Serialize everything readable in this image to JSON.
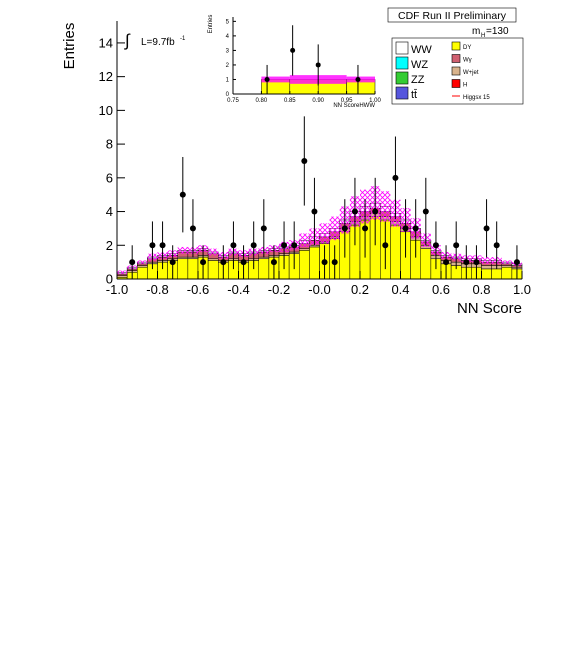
{
  "chart_data": {
    "type": "stacked-histogram",
    "title": "CDF Run II Preliminary",
    "x_label": "NN Score",
    "y_label": "Entries",
    "annotations": {
      "lumi_integral": "∫",
      "lumi": "L=9.7fb",
      "lumi_exp": "-1",
      "mass": "m",
      "mass_sub": "H",
      "mass_val": "=130"
    },
    "bins_start": -1.0,
    "bin_width": 0.05,
    "xlim": [
      -1.0,
      1.0
    ],
    "ylim": [
      0,
      15.3
    ],
    "xticks": [
      {
        "value": -1.0,
        "label": "-1.0"
      },
      {
        "value": -0.8,
        "label": "-0.8"
      },
      {
        "value": -0.6,
        "label": "-0.6"
      },
      {
        "value": -0.4,
        "label": "-0.4"
      },
      {
        "value": -0.2,
        "label": "-0.2"
      },
      {
        "value": 0,
        "label": "-0.0"
      },
      {
        "value": 0.2,
        "label": "0.2"
      },
      {
        "value": 0.4,
        "label": "0.4"
      },
      {
        "value": 0.6,
        "label": "0.6"
      },
      {
        "value": 0.8,
        "label": "0.8"
      },
      {
        "value": 1.0,
        "label": "1.0"
      }
    ],
    "yticks": [
      0,
      2,
      4,
      6,
      8,
      10,
      12,
      14
    ],
    "series": [
      {
        "name": "DY",
        "color": "#ffff00",
        "values": [
          0.1,
          0.4,
          0.7,
          0.9,
          1.0,
          1.1,
          1.2,
          1.2,
          1.3,
          1.1,
          1.0,
          1.1,
          1.0,
          1.1,
          1.2,
          1.3,
          1.4,
          1.5,
          1.7,
          1.9,
          2.1,
          2.4,
          2.8,
          3.2,
          3.5,
          3.7,
          3.5,
          3.2,
          2.8,
          2.3,
          1.8,
          1.2,
          0.9,
          0.8,
          0.7,
          0.7,
          0.6,
          0.6,
          0.7,
          0.6
        ]
      },
      {
        "name": "W+jet",
        "color": "#d9b38c",
        "values": [
          0.1,
          0.1,
          0.1,
          0.1,
          0.1,
          0.1,
          0.1,
          0.1,
          0.1,
          0.1,
          0.1,
          0.1,
          0.1,
          0.1,
          0.1,
          0.1,
          0.1,
          0.1,
          0.1,
          0.1,
          0.1,
          0.1,
          0.2,
          0.2,
          0.2,
          0.2,
          0.2,
          0.2,
          0.2,
          0.2,
          0.2,
          0.2,
          0.2,
          0.2,
          0.2,
          0.2,
          0.2,
          0.2,
          0.1,
          0.1
        ]
      },
      {
        "name": "Wγ",
        "color": "#d06070",
        "values": [
          0.1,
          0.1,
          0.1,
          0.2,
          0.2,
          0.2,
          0.3,
          0.3,
          0.3,
          0.3,
          0.2,
          0.3,
          0.3,
          0.3,
          0.3,
          0.3,
          0.3,
          0.3,
          0.3,
          0.3,
          0.3,
          0.3,
          0.3,
          0.3,
          0.3,
          0.3,
          0.3,
          0.3,
          0.3,
          0.3,
          0.2,
          0.2,
          0.2,
          0.2,
          0.2,
          0.2,
          0.2,
          0.2,
          0.1,
          0.1
        ]
      },
      {
        "name": "WW",
        "color": "#ffffff",
        "values": [
          0.1,
          0.1,
          0.1,
          0.1,
          0.1,
          0.1,
          0.1,
          0.1,
          0.1,
          0.1,
          0.1,
          0.1,
          0.1,
          0.1,
          0.1,
          0.1,
          0.1,
          0.1,
          0.2,
          0.2,
          0.2,
          0.2,
          0.2,
          0.3,
          0.3,
          0.3,
          0.3,
          0.2,
          0.2,
          0.2,
          0.1,
          0.1,
          0.1,
          0.1,
          0.1,
          0.1,
          0.1,
          0.1,
          0.1,
          0.1
        ]
      }
    ],
    "error_band": [
      0.1,
      0.1,
      0.1,
      0.2,
      0.2,
      0.2,
      0.2,
      0.2,
      0.2,
      0.2,
      0.2,
      0.2,
      0.2,
      0.2,
      0.2,
      0.2,
      0.3,
      0.3,
      0.4,
      0.5,
      0.6,
      0.7,
      0.8,
      0.9,
      1.0,
      1.0,
      0.9,
      0.8,
      0.7,
      0.6,
      0.4,
      0.3,
      0.2,
      0.2,
      0.2,
      0.2,
      0.2,
      0.2,
      0.1,
      0.1
    ],
    "data_x": [
      -0.925,
      -0.825,
      -0.775,
      -0.725,
      -0.675,
      -0.625,
      -0.575,
      -0.475,
      -0.425,
      -0.375,
      -0.325,
      -0.275,
      -0.225,
      -0.175,
      -0.125,
      -0.075,
      -0.025,
      0.025,
      0.075,
      0.125,
      0.175,
      0.225,
      0.275,
      0.325,
      0.375,
      0.425,
      0.475,
      0.525,
      0.575,
      0.625,
      0.675,
      0.725,
      0.775,
      0.825,
      0.875,
      0.975
    ],
    "data_y": [
      1,
      2,
      2,
      1,
      5,
      3,
      1,
      1,
      2,
      1,
      2,
      3,
      1,
      2,
      2,
      7,
      4,
      1,
      1,
      3,
      4,
      3,
      4,
      2,
      6,
      3,
      3,
      4,
      2,
      1,
      2,
      1,
      1,
      3,
      2,
      1
    ],
    "legend": [
      {
        "name": "WW",
        "color": "#ffffff"
      },
      {
        "name": "WZ",
        "color": "#00ffff"
      },
      {
        "name": "ZZ",
        "color": "#33cc33"
      },
      {
        "name": "tt̄",
        "color": "#5555dd"
      },
      {
        "name": "DY",
        "color": "#ffff00"
      },
      {
        "name": "Wγ",
        "color": "#d06070"
      },
      {
        "name": "W+jet",
        "color": "#d9b38c"
      },
      {
        "name": "H",
        "color": "#ff0000"
      },
      {
        "name": "Higgsx 15",
        "color": "#ff0000",
        "line": true
      }
    ],
    "inset": {
      "x_label": "NN ScoreHWW",
      "y_label": "Entries",
      "xlim": [
        0.75,
        1.0
      ],
      "ylim": [
        0,
        5.3
      ],
      "xticks": [
        {
          "value": 0.75,
          "label": "0.75"
        },
        {
          "value": 0.8,
          "label": "0.80"
        },
        {
          "value": 0.85,
          "label": "0.85"
        },
        {
          "value": 0.9,
          "label": "0.90"
        },
        {
          "value": 0.95,
          "label": "0.95"
        },
        {
          "value": 1.0,
          "label": "1.00"
        }
      ],
      "yticks": [
        0,
        1,
        2,
        3,
        4,
        5
      ],
      "bins_start": 0.75,
      "bin_width": 0.05,
      "background": [
        0,
        1.0,
        1.0,
        1.0,
        1.0
      ],
      "error_band": [
        0,
        0.2,
        0.3,
        0.3,
        0.2
      ],
      "data_x": [
        0.81,
        0.855,
        0.9,
        0.97
      ],
      "data_y": [
        1,
        3,
        2,
        1
      ]
    }
  }
}
